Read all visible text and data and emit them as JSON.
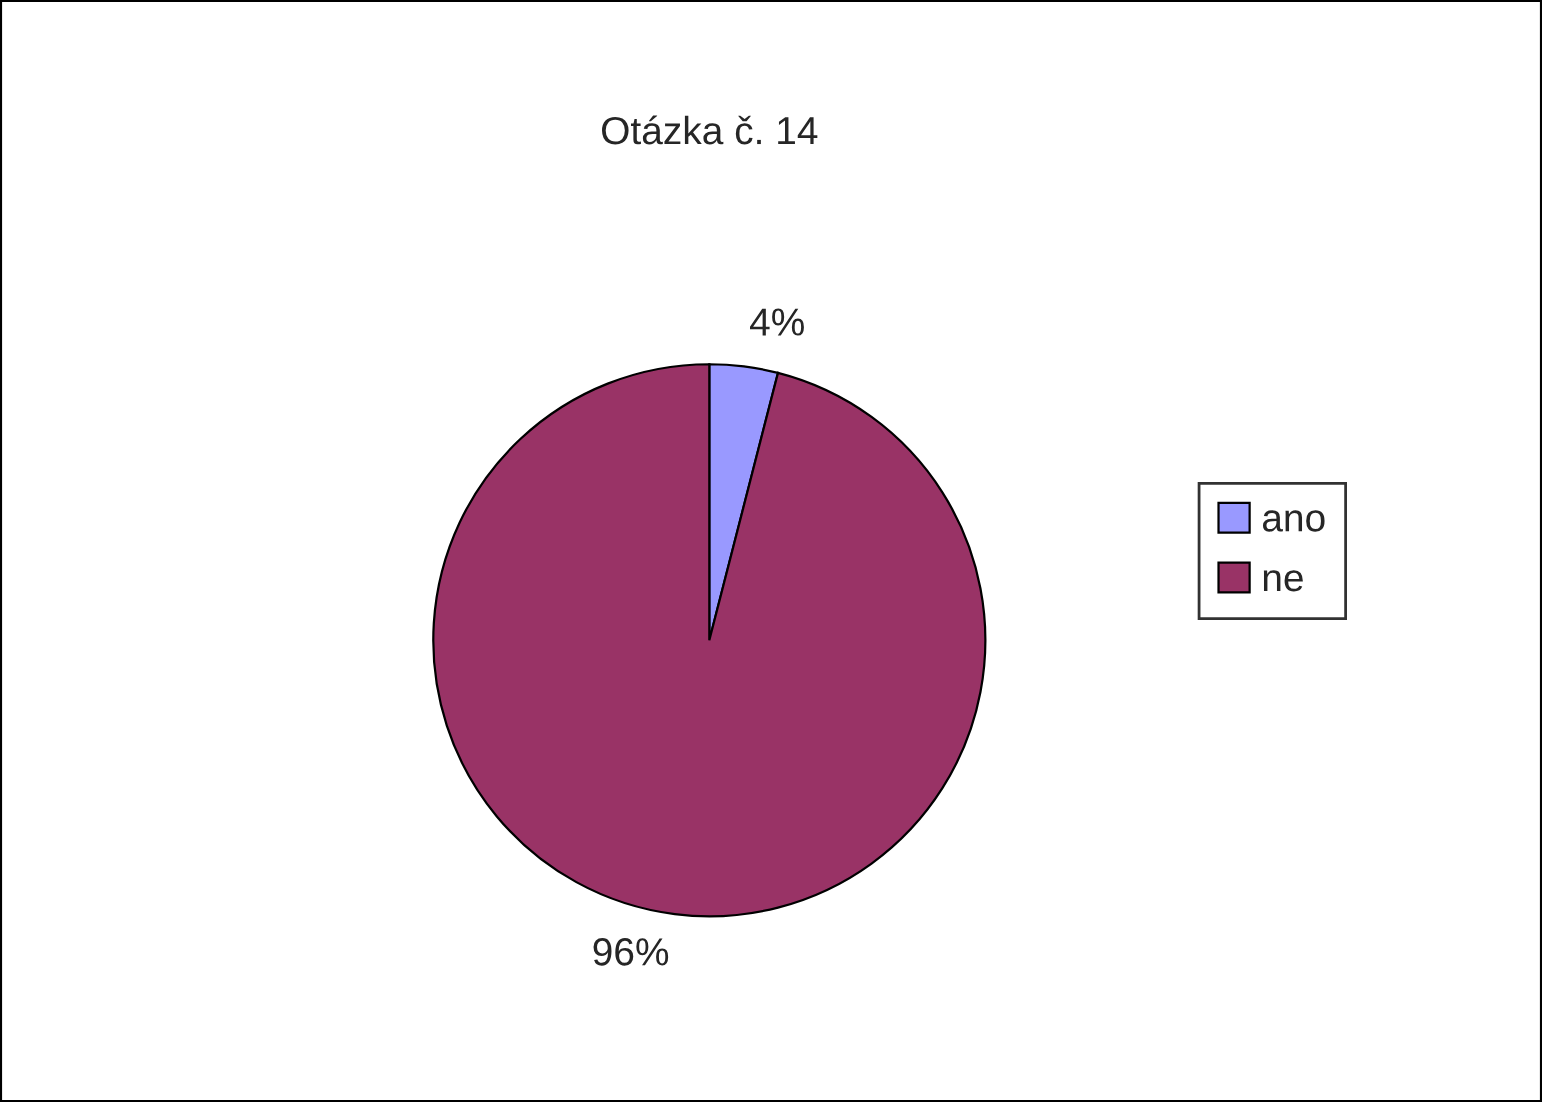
{
  "chart_data": {
    "type": "pie",
    "title": "Otázka č. 14",
    "categories": [
      "ano",
      "ne"
    ],
    "values": [
      4,
      96
    ],
    "colors": [
      "#9999ff",
      "#993366"
    ],
    "value_labels": [
      "4%",
      "96%"
    ],
    "legend": "right"
  }
}
